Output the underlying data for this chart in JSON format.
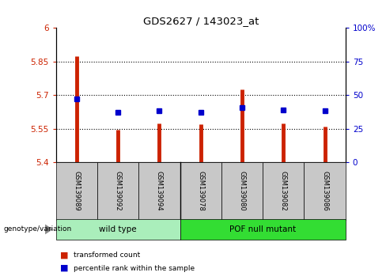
{
  "title": "GDS2627 / 143023_at",
  "samples": [
    "GSM139089",
    "GSM139092",
    "GSM139094",
    "GSM139078",
    "GSM139080",
    "GSM139082",
    "GSM139086"
  ],
  "red_tops": [
    5.875,
    5.545,
    5.575,
    5.57,
    5.725,
    5.575,
    5.56
  ],
  "red_bottoms": [
    5.4,
    5.4,
    5.4,
    5.4,
    5.4,
    5.4,
    5.4
  ],
  "blue_values": [
    5.685,
    5.625,
    5.63,
    5.625,
    5.645,
    5.635,
    5.63
  ],
  "ylim_left": [
    5.4,
    6.0
  ],
  "ylim_right": [
    0,
    100
  ],
  "yticks_left": [
    5.4,
    5.55,
    5.7,
    5.85,
    6.0
  ],
  "yticks_right": [
    0,
    25,
    50,
    75,
    100
  ],
  "ytick_labels_left": [
    "5.4",
    "5.55",
    "5.7",
    "5.85",
    "6"
  ],
  "ytick_labels_right": [
    "0",
    "25",
    "50",
    "75",
    "100%"
  ],
  "hlines": [
    5.55,
    5.7,
    5.85
  ],
  "bar_color": "#CC2200",
  "blue_color": "#0000CC",
  "title_color": "black",
  "left_tick_color": "#CC2200",
  "right_tick_color": "#0000CC",
  "background_sample": "#C8C8C8",
  "background_group_wt": "#AAEEBB",
  "background_group_pof": "#33DD33",
  "wt_samples": 3,
  "pof_samples": 4,
  "wt_label": "wild type",
  "pof_label": "POF null mutant",
  "genotype_label": "genotype/variation",
  "legend_red_label": "transformed count",
  "legend_blue_label": "percentile rank within the sample"
}
